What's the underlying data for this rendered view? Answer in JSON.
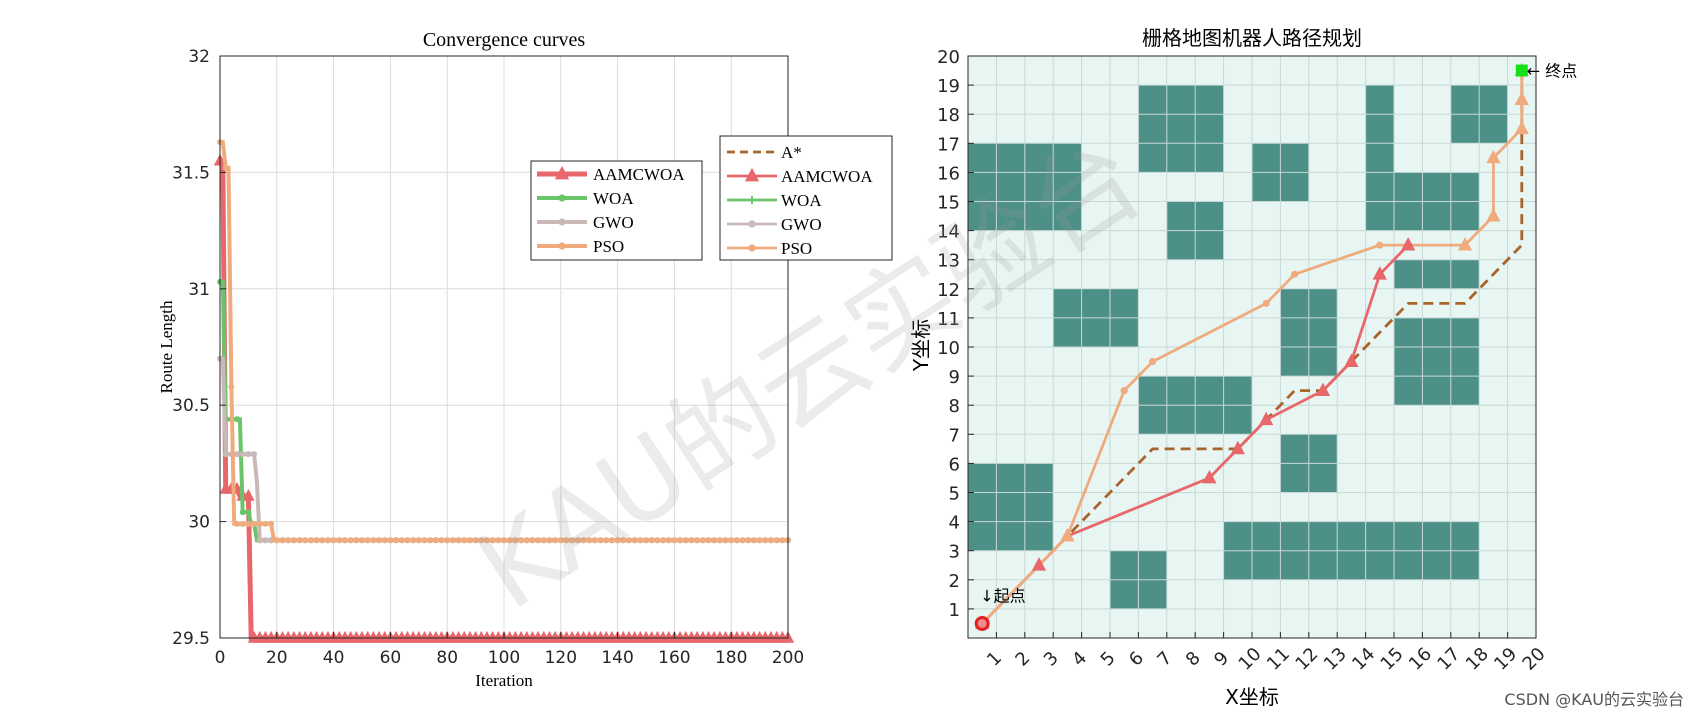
{
  "chart_data": [
    {
      "type": "line",
      "title": "Convergence curves",
      "xlabel": "Iteration",
      "ylabel": "Route Length",
      "xlim": [
        0,
        200
      ],
      "ylim": [
        29.5,
        32
      ],
      "xticks": [
        0,
        20,
        40,
        60,
        80,
        100,
        120,
        140,
        160,
        180,
        200
      ],
      "yticks": [
        29.5,
        30,
        30.5,
        31,
        31.5,
        32
      ],
      "ytick_labels": [
        "29.5",
        "30",
        "30.5",
        "31",
        "31.5",
        "32"
      ],
      "grid": true,
      "legend_placement": "upper-right",
      "series": [
        {
          "name": "AAMCWOA",
          "color": "#e8676a",
          "marker": "triangle",
          "width": 5,
          "x": [
            0,
            1,
            2,
            3,
            4,
            5,
            6,
            7,
            8,
            9,
            10,
            11,
            200
          ],
          "y": [
            31.55,
            31.55,
            30.14,
            30.14,
            30.14,
            30.14,
            30.14,
            30.11,
            30.11,
            30.11,
            30.11,
            29.5,
            29.5
          ]
        },
        {
          "name": "WOA",
          "color": "#6ac46a",
          "marker": "dot",
          "width": 4,
          "x": [
            0,
            1,
            2,
            3,
            4,
            5,
            6,
            7,
            8,
            9,
            10,
            11,
            12,
            13,
            200
          ],
          "y": [
            31.03,
            31.03,
            30.44,
            30.44,
            30.44,
            30.44,
            30.44,
            30.44,
            30.04,
            30.04,
            30.04,
            29.99,
            29.99,
            29.92,
            29.92
          ]
        },
        {
          "name": "GWO",
          "color": "#c9b8b6",
          "marker": "dot",
          "width": 4,
          "x": [
            0,
            1,
            2,
            3,
            4,
            5,
            6,
            7,
            8,
            9,
            10,
            11,
            12,
            13,
            14,
            200
          ],
          "y": [
            30.7,
            30.7,
            30.29,
            30.29,
            30.29,
            30.29,
            30.29,
            30.29,
            30.29,
            30.29,
            30.29,
            30.29,
            30.29,
            30.17,
            29.92,
            29.92
          ]
        },
        {
          "name": "PSO",
          "color": "#efab7e",
          "marker": "dot",
          "width": 4,
          "x": [
            0,
            1,
            2,
            3,
            4,
            5,
            6,
            17,
            18,
            19,
            200
          ],
          "y": [
            31.63,
            31.63,
            31.52,
            31.52,
            30.58,
            29.99,
            29.99,
            29.99,
            29.99,
            29.92,
            29.92
          ]
        }
      ]
    },
    {
      "type": "line",
      "title": "栅格地图机器人路径规划",
      "xlabel": "X坐标",
      "ylabel": "Y坐标",
      "xlim": [
        0,
        20
      ],
      "ylim": [
        0,
        20
      ],
      "xticks": [
        1,
        2,
        3,
        4,
        5,
        6,
        7,
        8,
        9,
        10,
        11,
        12,
        13,
        14,
        15,
        16,
        17,
        18,
        19,
        20
      ],
      "yticks": [
        1,
        2,
        3,
        4,
        5,
        6,
        7,
        8,
        9,
        10,
        11,
        12,
        13,
        14,
        15,
        16,
        17,
        18,
        19,
        20
      ],
      "grid": true,
      "legend_placement": "upper-left",
      "obstacle_color": "#4d9088",
      "free_color": "#e8f6f3",
      "obstacles": [
        [
          0,
          14,
          4,
          17
        ],
        [
          6,
          16,
          9,
          19
        ],
        [
          7,
          13,
          9,
          15
        ],
        [
          10,
          15,
          12,
          17
        ],
        [
          14,
          14,
          15,
          19
        ],
        [
          15,
          14,
          18,
          16
        ],
        [
          17,
          17,
          19,
          19
        ],
        [
          3,
          10,
          6,
          12
        ],
        [
          11,
          9,
          13,
          12
        ],
        [
          15,
          12,
          18,
          13
        ],
        [
          15,
          8,
          18,
          11
        ],
        [
          6,
          7,
          10,
          9
        ],
        [
          11,
          5,
          13,
          7
        ],
        [
          0,
          3,
          3,
          6
        ],
        [
          5,
          1,
          7,
          3
        ],
        [
          9,
          2,
          18,
          4
        ]
      ],
      "start": {
        "x": 0.5,
        "y": 0.5,
        "label": "↓起点",
        "color": "#e02222"
      },
      "goal": {
        "x": 19.5,
        "y": 19.5,
        "label": "← 终点",
        "color": "#18e018"
      },
      "series": [
        {
          "name": "A*",
          "color": "#a8642a",
          "dash": true,
          "marker": "none",
          "x": [
            0.5,
            3.5,
            6.5,
            9.5,
            11.5,
            12.5,
            14.5,
            15.5,
            17.5,
            19.5,
            19.5
          ],
          "y": [
            0.5,
            3.5,
            6.5,
            6.5,
            8.5,
            8.5,
            10.5,
            11.5,
            11.5,
            13.5,
            19.5
          ]
        },
        {
          "name": "AAMCWOA",
          "color": "#e8676a",
          "dash": false,
          "marker": "triangle",
          "x": [
            0.5,
            2.5,
            3.5,
            8.5,
            9.5,
            10.5,
            12.5,
            13.5,
            14.5,
            15.5
          ],
          "y": [
            0.5,
            2.5,
            3.5,
            5.5,
            6.5,
            7.5,
            8.5,
            9.5,
            12.5,
            13.5
          ]
        },
        {
          "name": "WOA",
          "color": "#6ac46a",
          "dash": false,
          "marker": "plus",
          "x": [],
          "y": []
        },
        {
          "name": "GWO",
          "color": "#c9b8b6",
          "dash": false,
          "marker": "dot",
          "x": [],
          "y": []
        },
        {
          "name": "PSO",
          "color": "#efab7e",
          "dash": false,
          "marker": "mixed",
          "x": [
            0.5,
            3.5,
            5.5,
            6.5,
            10.5,
            11.5,
            14.5,
            17.5,
            18.5,
            18.5,
            19.5,
            19.5,
            19.5
          ],
          "y": [
            0.5,
            3.5,
            8.5,
            9.5,
            11.5,
            12.5,
            13.5,
            13.5,
            14.5,
            16.5,
            17.5,
            18.5,
            19.5
          ],
          "point_markers": [
            "dot",
            "triangle",
            "dot",
            "dot",
            "dot",
            "dot",
            "dot",
            "triangle",
            "triangle",
            "triangle",
            "triangle",
            "triangle",
            "triangle"
          ]
        }
      ]
    }
  ],
  "watermark": "KAU的云实验台",
  "footer": "CSDN @KAU的云实验台"
}
